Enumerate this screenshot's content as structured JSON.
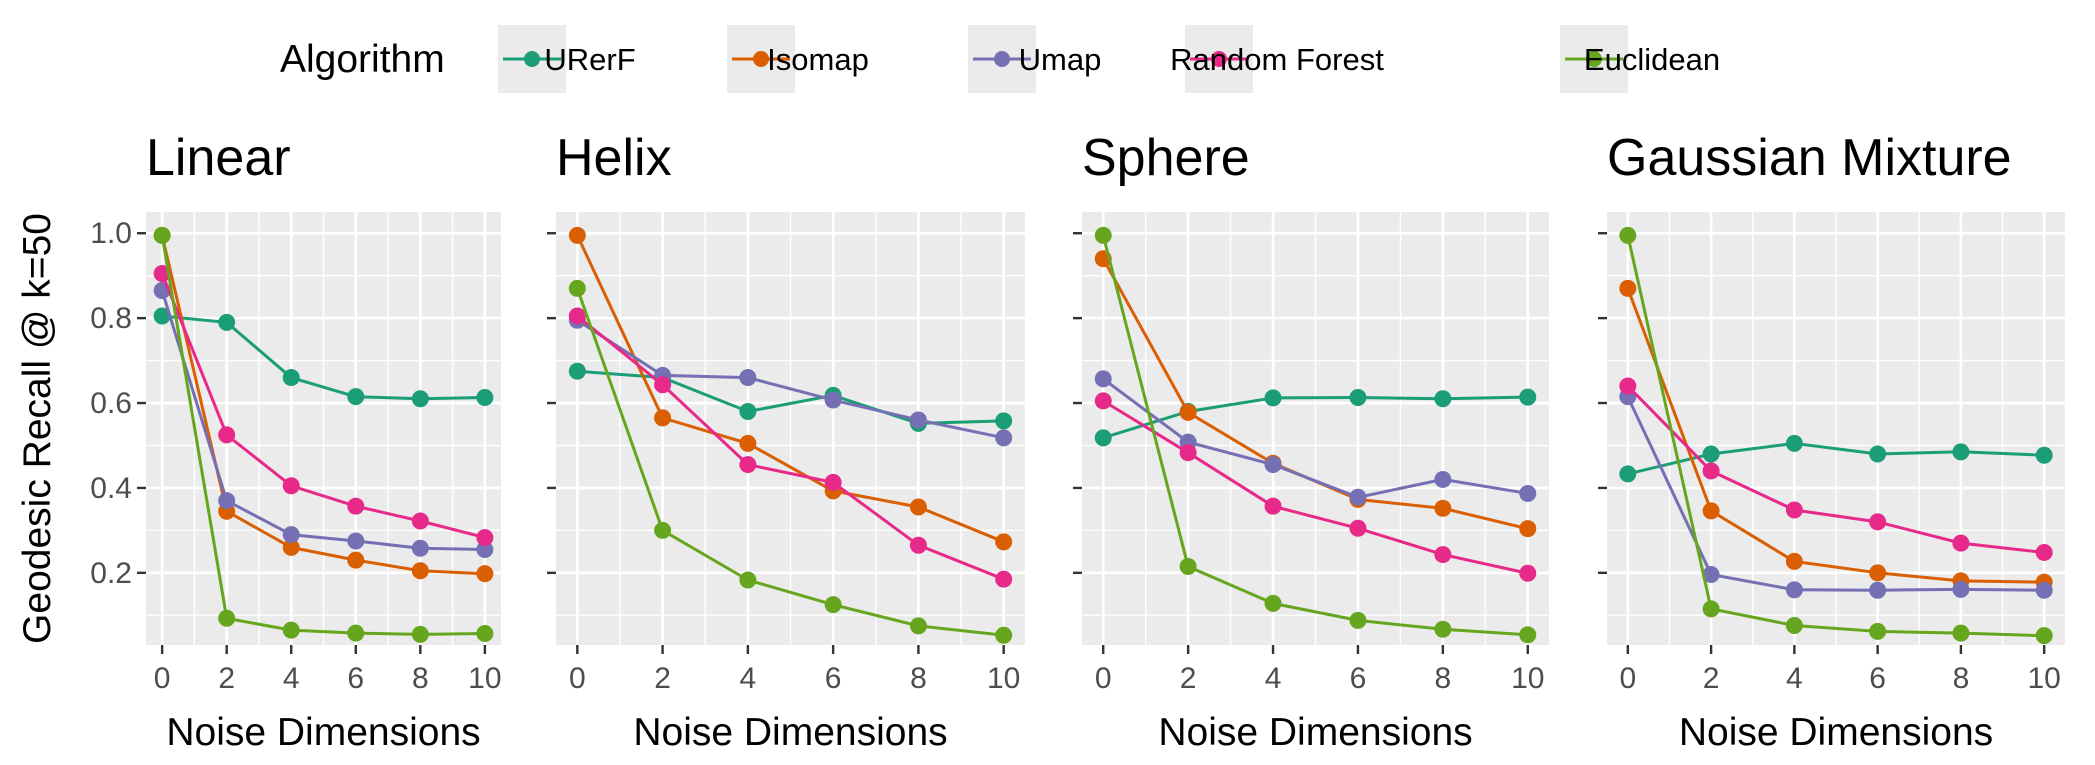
{
  "chart_data": {
    "type": "line",
    "legend": {
      "title": "Algorithm",
      "placement": "top"
    },
    "ylabel": "Geodesic Recall @ k=50",
    "xlabel": "Noise Dimensions",
    "x": [
      0,
      2,
      4,
      6,
      8,
      10
    ],
    "xticks": [
      "0",
      "2",
      "4",
      "6",
      "8",
      "10"
    ],
    "xlim": [
      -0.5,
      10.5
    ],
    "ylim": [
      0.03,
      1.05
    ],
    "yticks": [
      0.2,
      0.4,
      0.6,
      0.8,
      1.0
    ],
    "ytick_labels": [
      "0.2",
      "0.4",
      "0.6",
      "0.8",
      "1.0"
    ],
    "grid": true,
    "series_styles": [
      {
        "name": "URerF",
        "color": "#1B9E77"
      },
      {
        "name": "Isomap",
        "color": "#D95F02"
      },
      {
        "name": "Umap",
        "color": "#7570B3"
      },
      {
        "name": "Random Forest",
        "color": "#E7298A"
      },
      {
        "name": "Euclidean",
        "color": "#66A61E"
      }
    ],
    "panels": [
      {
        "title": "Linear",
        "series": [
          {
            "name": "URerF",
            "values": [
              0.805,
              0.79,
              0.66,
              0.615,
              0.61,
              0.613
            ]
          },
          {
            "name": "Isomap",
            "values": [
              0.995,
              0.345,
              0.26,
              0.23,
              0.205,
              0.198
            ]
          },
          {
            "name": "Umap",
            "values": [
              0.865,
              0.37,
              0.29,
              0.275,
              0.258,
              0.255
            ]
          },
          {
            "name": "Random Forest",
            "values": [
              0.905,
              0.525,
              0.405,
              0.357,
              0.322,
              0.283
            ]
          },
          {
            "name": "Euclidean",
            "values": [
              0.995,
              0.093,
              0.065,
              0.058,
              0.055,
              0.057
            ]
          }
        ]
      },
      {
        "title": "Helix",
        "series": [
          {
            "name": "URerF",
            "values": [
              0.675,
              0.66,
              0.58,
              0.618,
              0.552,
              0.558
            ]
          },
          {
            "name": "Isomap",
            "values": [
              0.995,
              0.565,
              0.505,
              0.393,
              0.355,
              0.273
            ]
          },
          {
            "name": "Umap",
            "values": [
              0.795,
              0.665,
              0.66,
              0.607,
              0.56,
              0.518
            ]
          },
          {
            "name": "Random Forest",
            "values": [
              0.805,
              0.643,
              0.455,
              0.413,
              0.265,
              0.185
            ]
          },
          {
            "name": "Euclidean",
            "values": [
              0.87,
              0.3,
              0.183,
              0.125,
              0.075,
              0.053
            ]
          }
        ]
      },
      {
        "title": "Sphere",
        "series": [
          {
            "name": "URerF",
            "values": [
              0.518,
              0.58,
              0.612,
              0.613,
              0.61,
              0.614
            ]
          },
          {
            "name": "Isomap",
            "values": [
              0.94,
              0.578,
              0.458,
              0.373,
              0.352,
              0.304
            ]
          },
          {
            "name": "Umap",
            "values": [
              0.657,
              0.508,
              0.455,
              0.378,
              0.42,
              0.387
            ]
          },
          {
            "name": "Random Forest",
            "values": [
              0.605,
              0.483,
              0.357,
              0.305,
              0.243,
              0.199
            ]
          },
          {
            "name": "Euclidean",
            "values": [
              0.995,
              0.215,
              0.128,
              0.088,
              0.067,
              0.054
            ]
          }
        ]
      },
      {
        "title": "Gaussian Mixture",
        "series": [
          {
            "name": "URerF",
            "values": [
              0.433,
              0.48,
              0.505,
              0.48,
              0.485,
              0.477
            ]
          },
          {
            "name": "Isomap",
            "values": [
              0.87,
              0.346,
              0.227,
              0.2,
              0.181,
              0.178
            ]
          },
          {
            "name": "Umap",
            "values": [
              0.615,
              0.196,
              0.16,
              0.159,
              0.161,
              0.159
            ]
          },
          {
            "name": "Random Forest",
            "values": [
              0.64,
              0.44,
              0.348,
              0.32,
              0.27,
              0.248
            ]
          },
          {
            "name": "Euclidean",
            "values": [
              0.995,
              0.115,
              0.076,
              0.062,
              0.058,
              0.052
            ]
          }
        ]
      }
    ]
  }
}
